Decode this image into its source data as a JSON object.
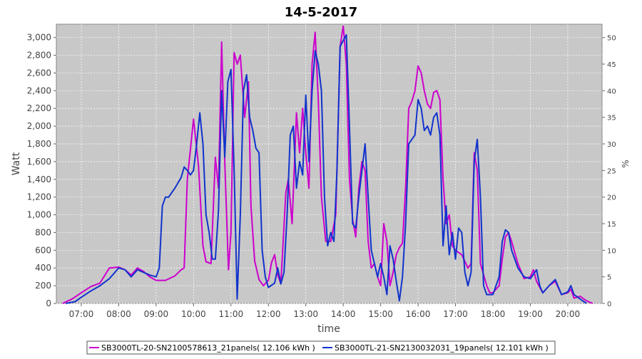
{
  "chart_data": {
    "type": "line",
    "title": "14-5-2017",
    "xlabel": "time",
    "ylabel": "Watt",
    "y2label": "%",
    "xlim": [
      "06:20",
      "20:55"
    ],
    "ylim": [
      0,
      3150
    ],
    "y2lim": [
      0,
      52.5
    ],
    "grid": true,
    "legend_placement": "bottom",
    "x_ticks": [
      "07:00",
      "08:00",
      "09:00",
      "10:00",
      "11:00",
      "12:00",
      "13:00",
      "14:00",
      "15:00",
      "16:00",
      "17:00",
      "18:00",
      "19:00",
      "20:00"
    ],
    "y_ticks": [
      "0",
      "200",
      "400",
      "600",
      "800",
      "1,000",
      "1,200",
      "1,400",
      "1,600",
      "1,800",
      "2,000",
      "2,200",
      "2,400",
      "2,600",
      "2,800",
      "3,000"
    ],
    "y2_ticks": [
      "0",
      "5",
      "10",
      "15",
      "20",
      "25",
      "30",
      "35",
      "40",
      "45",
      "50"
    ],
    "colors": {
      "plot_background": "#c8c8c8",
      "grid": "#ffffff",
      "series_1": "#cc00cc",
      "series_2": "#1133cc"
    },
    "series": [
      {
        "name": "SB3000TL-20-SN2100578613_21panels( 12.106 kWh )",
        "color": "#cc00cc",
        "points": [
          [
            "06:30",
            0
          ],
          [
            "06:45",
            50
          ],
          [
            "07:00",
            120
          ],
          [
            "07:15",
            190
          ],
          [
            "07:30",
            230
          ],
          [
            "07:45",
            400
          ],
          [
            "08:00",
            410
          ],
          [
            "08:10",
            380
          ],
          [
            "08:20",
            320
          ],
          [
            "08:30",
            400
          ],
          [
            "08:40",
            360
          ],
          [
            "08:50",
            300
          ],
          [
            "09:00",
            260
          ],
          [
            "09:15",
            260
          ],
          [
            "09:30",
            310
          ],
          [
            "09:40",
            380
          ],
          [
            "09:45",
            400
          ],
          [
            "09:50",
            1400
          ],
          [
            "10:00",
            2080
          ],
          [
            "10:08",
            1550
          ],
          [
            "10:15",
            650
          ],
          [
            "10:20",
            470
          ],
          [
            "10:28",
            450
          ],
          [
            "10:35",
            1650
          ],
          [
            "10:40",
            1300
          ],
          [
            "10:45",
            2950
          ],
          [
            "10:50",
            1600
          ],
          [
            "10:56",
            380
          ],
          [
            "11:00",
            800
          ],
          [
            "11:05",
            2830
          ],
          [
            "11:10",
            2700
          ],
          [
            "11:15",
            2800
          ],
          [
            "11:22",
            2100
          ],
          [
            "11:28",
            2500
          ],
          [
            "11:32",
            1100
          ],
          [
            "11:38",
            480
          ],
          [
            "11:45",
            270
          ],
          [
            "11:52",
            200
          ],
          [
            "12:00",
            260
          ],
          [
            "12:05",
            460
          ],
          [
            "12:10",
            550
          ],
          [
            "12:15",
            320
          ],
          [
            "12:20",
            220
          ],
          [
            "12:28",
            1250
          ],
          [
            "12:32",
            1400
          ],
          [
            "12:38",
            900
          ],
          [
            "12:45",
            2150
          ],
          [
            "12:50",
            1700
          ],
          [
            "12:55",
            2200
          ],
          [
            "13:00",
            1700
          ],
          [
            "13:05",
            1300
          ],
          [
            "13:10",
            2700
          ],
          [
            "13:15",
            3060
          ],
          [
            "13:20",
            2300
          ],
          [
            "13:25",
            1200
          ],
          [
            "13:32",
            700
          ],
          [
            "13:40",
            700
          ],
          [
            "13:48",
            1000
          ],
          [
            "13:55",
            2900
          ],
          [
            "14:00",
            3130
          ],
          [
            "14:05",
            2700
          ],
          [
            "14:10",
            1400
          ],
          [
            "14:15",
            950
          ],
          [
            "14:20",
            750
          ],
          [
            "14:25",
            1300
          ],
          [
            "14:30",
            1600
          ],
          [
            "14:35",
            1500
          ],
          [
            "14:40",
            700
          ],
          [
            "14:45",
            400
          ],
          [
            "14:50",
            450
          ],
          [
            "14:55",
            300
          ],
          [
            "15:00",
            200
          ],
          [
            "15:05",
            900
          ],
          [
            "15:10",
            700
          ],
          [
            "15:15",
            200
          ],
          [
            "15:20",
            350
          ],
          [
            "15:25",
            550
          ],
          [
            "15:30",
            630
          ],
          [
            "15:35",
            680
          ],
          [
            "15:40",
            1300
          ],
          [
            "15:45",
            2200
          ],
          [
            "15:50",
            2280
          ],
          [
            "15:55",
            2400
          ],
          [
            "16:00",
            2680
          ],
          [
            "16:05",
            2600
          ],
          [
            "16:10",
            2400
          ],
          [
            "16:15",
            2250
          ],
          [
            "16:20",
            2200
          ],
          [
            "16:25",
            2380
          ],
          [
            "16:30",
            2400
          ],
          [
            "16:35",
            2300
          ],
          [
            "16:40",
            1400
          ],
          [
            "16:45",
            900
          ],
          [
            "16:50",
            1000
          ],
          [
            "16:55",
            650
          ],
          [
            "17:00",
            600
          ],
          [
            "17:10",
            550
          ],
          [
            "17:20",
            400
          ],
          [
            "17:25",
            450
          ],
          [
            "17:30",
            1700
          ],
          [
            "17:35",
            1500
          ],
          [
            "17:40",
            450
          ],
          [
            "17:50",
            200
          ],
          [
            "17:55",
            120
          ],
          [
            "18:00",
            120
          ],
          [
            "18:10",
            200
          ],
          [
            "18:15",
            500
          ],
          [
            "18:20",
            750
          ],
          [
            "18:25",
            800
          ],
          [
            "18:30",
            700
          ],
          [
            "18:40",
            450
          ],
          [
            "18:50",
            280
          ],
          [
            "19:00",
            300
          ],
          [
            "19:05",
            380
          ],
          [
            "19:10",
            250
          ],
          [
            "19:20",
            120
          ],
          [
            "19:30",
            200
          ],
          [
            "19:40",
            250
          ],
          [
            "19:50",
            100
          ],
          [
            "20:00",
            120
          ],
          [
            "20:05",
            160
          ],
          [
            "20:10",
            60
          ],
          [
            "20:20",
            80
          ],
          [
            "20:30",
            30
          ],
          [
            "20:40",
            0
          ]
        ]
      },
      {
        "name": "SB3000TL-21-SN2130032031_19panels( 12.101 kWh )",
        "color": "#1133cc",
        "points": [
          [
            "06:35",
            0
          ],
          [
            "06:50",
            20
          ],
          [
            "07:00",
            70
          ],
          [
            "07:15",
            140
          ],
          [
            "07:30",
            200
          ],
          [
            "07:45",
            280
          ],
          [
            "08:00",
            400
          ],
          [
            "08:10",
            380
          ],
          [
            "08:20",
            300
          ],
          [
            "08:30",
            380
          ],
          [
            "08:40",
            350
          ],
          [
            "08:50",
            320
          ],
          [
            "09:00",
            300
          ],
          [
            "09:05",
            400
          ],
          [
            "09:10",
            1100
          ],
          [
            "09:15",
            1200
          ],
          [
            "09:20",
            1200
          ],
          [
            "09:30",
            1300
          ],
          [
            "09:40",
            1420
          ],
          [
            "09:45",
            1540
          ],
          [
            "09:50",
            1500
          ],
          [
            "09:55",
            1450
          ],
          [
            "10:00",
            1500
          ],
          [
            "10:05",
            1800
          ],
          [
            "10:10",
            2150
          ],
          [
            "10:15",
            1800
          ],
          [
            "10:20",
            1000
          ],
          [
            "10:25",
            800
          ],
          [
            "10:30",
            500
          ],
          [
            "10:35",
            500
          ],
          [
            "10:40",
            1050
          ],
          [
            "10:45",
            2400
          ],
          [
            "10:50",
            1650
          ],
          [
            "10:55",
            2500
          ],
          [
            "11:00",
            2640
          ],
          [
            "11:05",
            1500
          ],
          [
            "11:10",
            50
          ],
          [
            "11:15",
            1000
          ],
          [
            "11:20",
            2400
          ],
          [
            "11:25",
            2580
          ],
          [
            "11:30",
            2100
          ],
          [
            "11:35",
            1950
          ],
          [
            "11:40",
            1750
          ],
          [
            "11:45",
            1700
          ],
          [
            "11:50",
            600
          ],
          [
            "11:55",
            300
          ],
          [
            "12:00",
            180
          ],
          [
            "12:10",
            230
          ],
          [
            "12:15",
            400
          ],
          [
            "12:20",
            220
          ],
          [
            "12:25",
            350
          ],
          [
            "12:30",
            1000
          ],
          [
            "12:35",
            1900
          ],
          [
            "12:40",
            2000
          ],
          [
            "12:45",
            1300
          ],
          [
            "12:50",
            1600
          ],
          [
            "12:55",
            1450
          ],
          [
            "13:00",
            2350
          ],
          [
            "13:05",
            1600
          ],
          [
            "13:10",
            2400
          ],
          [
            "13:15",
            2850
          ],
          [
            "13:20",
            2700
          ],
          [
            "13:25",
            2400
          ],
          [
            "13:30",
            1200
          ],
          [
            "13:35",
            650
          ],
          [
            "13:40",
            800
          ],
          [
            "13:45",
            700
          ],
          [
            "13:50",
            1500
          ],
          [
            "13:55",
            2900
          ],
          [
            "14:05",
            3030
          ],
          [
            "14:10",
            2000
          ],
          [
            "14:15",
            900
          ],
          [
            "14:20",
            850
          ],
          [
            "14:25",
            1200
          ],
          [
            "14:30",
            1500
          ],
          [
            "14:35",
            1800
          ],
          [
            "14:40",
            1200
          ],
          [
            "14:45",
            600
          ],
          [
            "14:50",
            450
          ],
          [
            "14:55",
            300
          ],
          [
            "15:00",
            450
          ],
          [
            "15:05",
            300
          ],
          [
            "15:10",
            100
          ],
          [
            "15:15",
            650
          ],
          [
            "15:20",
            500
          ],
          [
            "15:25",
            250
          ],
          [
            "15:30",
            30
          ],
          [
            "15:35",
            300
          ],
          [
            "15:40",
            900
          ],
          [
            "15:45",
            1800
          ],
          [
            "15:50",
            1850
          ],
          [
            "15:55",
            1900
          ],
          [
            "16:00",
            2300
          ],
          [
            "16:05",
            2200
          ],
          [
            "16:10",
            1950
          ],
          [
            "16:15",
            2000
          ],
          [
            "16:20",
            1900
          ],
          [
            "16:25",
            2100
          ],
          [
            "16:30",
            2150
          ],
          [
            "16:35",
            1900
          ],
          [
            "16:40",
            650
          ],
          [
            "16:45",
            1100
          ],
          [
            "16:50",
            550
          ],
          [
            "16:55",
            800
          ],
          [
            "17:00",
            500
          ],
          [
            "17:05",
            850
          ],
          [
            "17:10",
            800
          ],
          [
            "17:15",
            350
          ],
          [
            "17:20",
            200
          ],
          [
            "17:25",
            350
          ],
          [
            "17:30",
            1600
          ],
          [
            "17:35",
            1850
          ],
          [
            "17:40",
            1200
          ],
          [
            "17:45",
            200
          ],
          [
            "17:50",
            100
          ],
          [
            "18:00",
            100
          ],
          [
            "18:10",
            300
          ],
          [
            "18:15",
            700
          ],
          [
            "18:20",
            830
          ],
          [
            "18:25",
            800
          ],
          [
            "18:30",
            600
          ],
          [
            "18:40",
            400
          ],
          [
            "18:50",
            300
          ],
          [
            "19:00",
            280
          ],
          [
            "19:10",
            380
          ],
          [
            "19:15",
            200
          ],
          [
            "19:20",
            120
          ],
          [
            "19:30",
            200
          ],
          [
            "19:40",
            270
          ],
          [
            "19:50",
            100
          ],
          [
            "20:00",
            130
          ],
          [
            "20:05",
            200
          ],
          [
            "20:10",
            100
          ],
          [
            "20:20",
            50
          ],
          [
            "20:30",
            0
          ]
        ]
      }
    ]
  }
}
